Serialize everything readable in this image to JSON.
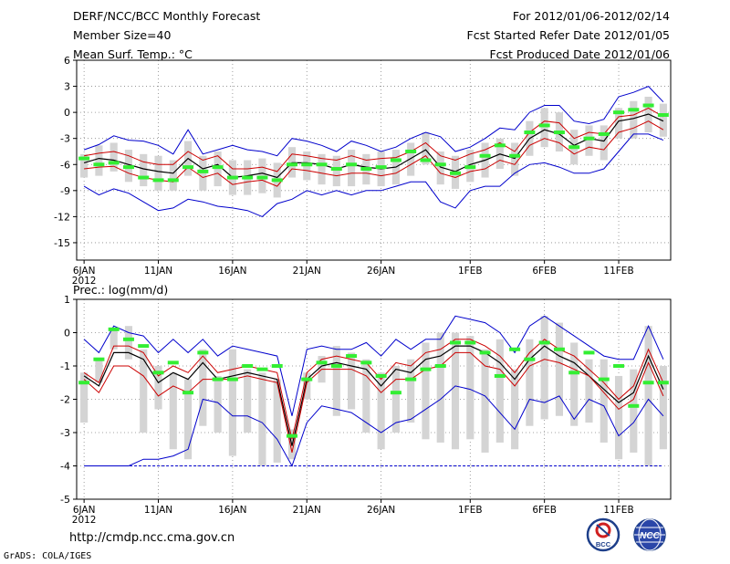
{
  "header": {
    "title": "DERF/NCC/BCC Monthly Forecast",
    "member_size": "Member Size=40",
    "variable": "Mean Surf. Temp.: °C",
    "period": "For 2012/01/06-2012/02/14",
    "refer_date": "Fcst Started Refer Date 2012/01/05",
    "produced_date": "Fcst Produced Date 2012/01/06"
  },
  "footer": {
    "url": "http://cmdp.ncc.cma.gov.cn",
    "credit": "GrADS: COLA/IGES",
    "logo_bcc": "BCC",
    "logo_ncc": "NCC"
  },
  "colors": {
    "ens_max_min": "#0000cc",
    "spread": "#cc0000",
    "ens_mean": "#000000",
    "box": "#d4d4d4",
    "observed": "#33ee33"
  },
  "chart_data": [
    {
      "type": "line",
      "title": "Mean Surf. Temp.: °C",
      "ylim": [
        -17,
        6
      ],
      "yticks": [
        6,
        3,
        0,
        -3,
        -6,
        -9,
        -12,
        -15
      ],
      "xlim": [
        0.5,
        40.5
      ],
      "xticks": [
        {
          "day": 1,
          "label": "6JAN",
          "sublabel": "2012"
        },
        {
          "day": 6,
          "label": "11JAN"
        },
        {
          "day": 11,
          "label": "16JAN"
        },
        {
          "day": 16,
          "label": "21JAN"
        },
        {
          "day": 21,
          "label": "26JAN"
        },
        {
          "day": 27,
          "label": "1FEB"
        },
        {
          "day": 32,
          "label": "6FEB"
        },
        {
          "day": 37,
          "label": "11FEB"
        }
      ],
      "x": [
        1,
        2,
        3,
        4,
        5,
        6,
        7,
        8,
        9,
        10,
        11,
        12,
        13,
        14,
        15,
        16,
        17,
        18,
        19,
        20,
        21,
        22,
        23,
        24,
        25,
        26,
        27,
        28,
        29,
        30,
        31,
        32,
        33,
        34,
        35,
        36,
        37,
        38,
        39,
        40
      ],
      "series": [
        {
          "name": "Ensemble Max",
          "role": "max",
          "values": [
            -4.3,
            -3.7,
            -2.7,
            -3.2,
            -3.3,
            -3.8,
            -4.8,
            -2.0,
            -4.8,
            -4.3,
            -3.8,
            -4.3,
            -4.5,
            -5.0,
            -3.0,
            -3.3,
            -3.8,
            -4.5,
            -3.3,
            -3.8,
            -4.5,
            -4.0,
            -3.0,
            -2.3,
            -2.8,
            -4.5,
            -4.0,
            -3.0,
            -1.8,
            -2.0,
            0.0,
            0.8,
            0.8,
            -1.0,
            -1.3,
            -0.8,
            1.8,
            2.3,
            3.0,
            1.2
          ]
        },
        {
          "name": "Upper Spread",
          "role": "upper",
          "values": [
            -5.0,
            -4.7,
            -4.5,
            -5.0,
            -5.7,
            -6.0,
            -6.0,
            -4.5,
            -5.5,
            -5.0,
            -6.5,
            -6.5,
            -6.3,
            -6.8,
            -4.8,
            -5.0,
            -5.3,
            -5.5,
            -5.0,
            -5.5,
            -5.3,
            -5.2,
            -4.5,
            -3.5,
            -5.0,
            -5.5,
            -4.8,
            -4.3,
            -3.5,
            -4.5,
            -2.3,
            -1.0,
            -1.2,
            -3.0,
            -2.3,
            -2.5,
            -0.5,
            -0.3,
            0.5,
            -0.5
          ]
        },
        {
          "name": "Ensemble Mean",
          "role": "mean",
          "values": [
            -5.8,
            -5.3,
            -5.5,
            -6.0,
            -6.5,
            -6.8,
            -7.0,
            -5.3,
            -6.5,
            -6.0,
            -7.5,
            -7.3,
            -7.0,
            -7.5,
            -5.8,
            -5.8,
            -6.0,
            -6.5,
            -6.0,
            -6.3,
            -6.5,
            -6.3,
            -5.3,
            -4.3,
            -6.3,
            -6.8,
            -6.0,
            -5.5,
            -4.8,
            -5.3,
            -3.0,
            -2.0,
            -2.5,
            -3.8,
            -3.0,
            -3.3,
            -1.0,
            -0.7,
            -0.2,
            -1.0
          ]
        },
        {
          "name": "Lower Spread",
          "role": "lower",
          "values": [
            -6.5,
            -6.3,
            -6.2,
            -7.0,
            -7.5,
            -7.8,
            -8.0,
            -6.3,
            -7.5,
            -7.0,
            -8.3,
            -8.0,
            -7.8,
            -8.5,
            -6.5,
            -6.7,
            -7.0,
            -7.3,
            -7.0,
            -7.0,
            -7.3,
            -7.0,
            -6.0,
            -5.0,
            -7.0,
            -7.5,
            -6.8,
            -6.5,
            -5.5,
            -6.0,
            -3.8,
            -3.0,
            -3.5,
            -4.8,
            -4.0,
            -4.3,
            -2.3,
            -1.8,
            -1.0,
            -2.0
          ]
        },
        {
          "name": "Ensemble Min",
          "role": "min",
          "values": [
            -8.5,
            -9.5,
            -8.8,
            -9.3,
            -10.3,
            -11.3,
            -11.0,
            -10.0,
            -10.3,
            -10.8,
            -11.0,
            -11.3,
            -12.0,
            -10.5,
            -10.0,
            -9.0,
            -9.5,
            -9.0,
            -9.5,
            -9.0,
            -9.0,
            -8.5,
            -8.0,
            -8.0,
            -10.3,
            -11.0,
            -9.0,
            -8.5,
            -8.5,
            -7.0,
            -6.0,
            -5.8,
            -6.3,
            -7.0,
            -7.0,
            -6.5,
            -4.5,
            -2.5,
            -2.5,
            -3.2
          ]
        }
      ],
      "boxes": {
        "low": [
          -7.5,
          -7.3,
          -6.8,
          -8.0,
          -8.5,
          -9.0,
          -9.0,
          -7.3,
          -9.0,
          -8.5,
          -9.5,
          -9.5,
          -9.3,
          -9.8,
          -7.5,
          -7.8,
          -8.3,
          -8.5,
          -8.5,
          -8.3,
          -8.5,
          -8.3,
          -7.3,
          -6.0,
          -8.3,
          -8.8,
          -8.0,
          -7.5,
          -6.5,
          -7.3,
          -5.0,
          -4.0,
          -4.5,
          -6.0,
          -5.0,
          -5.5,
          -3.0,
          -3.0,
          -2.3,
          -2.8
        ],
        "high": [
          -4.8,
          -3.8,
          -3.5,
          -4.3,
          -4.8,
          -5.0,
          -5.5,
          -3.3,
          -5.0,
          -4.5,
          -5.5,
          -5.5,
          -5.3,
          -5.8,
          -4.0,
          -4.5,
          -4.8,
          -5.0,
          -4.3,
          -4.8,
          -4.5,
          -4.3,
          -3.5,
          -2.3,
          -4.5,
          -5.0,
          -4.3,
          -3.5,
          -3.0,
          -3.5,
          -1.0,
          0.5,
          0.0,
          -2.0,
          -1.5,
          -1.5,
          0.5,
          1.3,
          1.8,
          1.0
        ]
      },
      "observed": [
        -5.3,
        -6.0,
        -5.8,
        -6.3,
        -7.5,
        -7.8,
        -7.8,
        -6.3,
        -6.8,
        -6.3,
        -7.5,
        -7.5,
        -7.5,
        -7.8,
        -6.0,
        -6.0,
        -6.0,
        -6.5,
        -6.0,
        -6.5,
        -6.3,
        -5.5,
        -4.5,
        -5.5,
        -6.0,
        -7.0,
        -6.3,
        -5.0,
        -3.8,
        -5.0,
        -2.3,
        -1.5,
        -2.3,
        -4.0,
        -3.0,
        -2.5,
        0.0,
        0.3,
        0.8,
        -0.3
      ]
    },
    {
      "type": "line",
      "title": "Prec.: log(mm/d)",
      "ylim": [
        -5,
        1
      ],
      "yticks": [
        1,
        0,
        -1,
        -2,
        -3,
        -4,
        -5
      ],
      "xlim": [
        0.5,
        40.5
      ],
      "xticks": [
        {
          "day": 1,
          "label": "6JAN",
          "sublabel": "2012"
        },
        {
          "day": 6,
          "label": "11JAN"
        },
        {
          "day": 11,
          "label": "16JAN"
        },
        {
          "day": 16,
          "label": "21JAN"
        },
        {
          "day": 21,
          "label": "26JAN"
        },
        {
          "day": 27,
          "label": "1FEB"
        },
        {
          "day": 32,
          "label": "6FEB"
        },
        {
          "day": 37,
          "label": "11FEB"
        }
      ],
      "x": [
        1,
        2,
        3,
        4,
        5,
        6,
        7,
        8,
        9,
        10,
        11,
        12,
        13,
        14,
        15,
        16,
        17,
        18,
        19,
        20,
        21,
        22,
        23,
        24,
        25,
        26,
        27,
        28,
        29,
        30,
        31,
        32,
        33,
        34,
        35,
        36,
        37,
        38,
        39,
        40
      ],
      "series": [
        {
          "name": "Ensemble Max",
          "role": "max",
          "values": [
            -0.2,
            -0.6,
            0.2,
            0.0,
            -0.1,
            -0.6,
            -0.2,
            -0.6,
            -0.2,
            -0.7,
            -0.4,
            -0.5,
            -0.6,
            -0.7,
            -2.5,
            -0.5,
            -0.4,
            -0.5,
            -0.5,
            -0.3,
            -0.7,
            -0.2,
            -0.5,
            -0.2,
            -0.2,
            0.5,
            0.4,
            0.3,
            0.0,
            -0.6,
            0.2,
            0.5,
            0.2,
            -0.1,
            -0.4,
            -0.7,
            -0.8,
            -0.8,
            0.2,
            -0.8
          ]
        },
        {
          "name": "Upper Spread",
          "role": "upper",
          "values": [
            -1.2,
            -1.5,
            -0.4,
            -0.4,
            -0.6,
            -1.3,
            -1.0,
            -1.2,
            -0.7,
            -1.2,
            -1.1,
            -1.0,
            -1.1,
            -1.2,
            -3.2,
            -1.2,
            -0.8,
            -0.7,
            -0.8,
            -0.9,
            -1.4,
            -0.9,
            -1.0,
            -0.6,
            -0.5,
            -0.2,
            -0.2,
            -0.4,
            -0.7,
            -1.2,
            -0.6,
            -0.2,
            -0.5,
            -0.7,
            -1.1,
            -1.5,
            -2.0,
            -1.6,
            -0.5,
            -1.5
          ]
        },
        {
          "name": "Ensemble Mean",
          "role": "mean",
          "values": [
            -1.3,
            -1.6,
            -0.6,
            -0.6,
            -0.8,
            -1.5,
            -1.2,
            -1.4,
            -0.9,
            -1.4,
            -1.3,
            -1.2,
            -1.3,
            -1.4,
            -3.4,
            -1.4,
            -1.0,
            -0.9,
            -1.0,
            -1.1,
            -1.6,
            -1.1,
            -1.2,
            -0.8,
            -0.7,
            -0.4,
            -0.4,
            -0.6,
            -0.9,
            -1.4,
            -0.8,
            -0.4,
            -0.7,
            -0.9,
            -1.3,
            -1.7,
            -2.1,
            -1.8,
            -0.7,
            -1.7
          ]
        },
        {
          "name": "Lower Spread",
          "role": "lower",
          "values": [
            -1.4,
            -1.8,
            -1.0,
            -1.0,
            -1.3,
            -1.9,
            -1.6,
            -1.8,
            -1.4,
            -1.4,
            -1.4,
            -1.3,
            -1.4,
            -1.5,
            -3.6,
            -1.5,
            -1.1,
            -1.1,
            -1.1,
            -1.3,
            -1.8,
            -1.4,
            -1.4,
            -1.1,
            -1.0,
            -0.6,
            -0.6,
            -1.0,
            -1.1,
            -1.6,
            -1.0,
            -0.8,
            -0.9,
            -1.1,
            -1.3,
            -1.8,
            -2.3,
            -2.0,
            -0.9,
            -1.9
          ]
        },
        {
          "name": "Ensemble Min",
          "role": "min",
          "values": [
            -4.0,
            -4.0,
            -4.0,
            -4.0,
            -3.8,
            -3.8,
            -3.7,
            -3.5,
            -2.0,
            -2.1,
            -2.5,
            -2.5,
            -2.7,
            -3.2,
            -4.0,
            -2.7,
            -2.2,
            -2.3,
            -2.4,
            -2.7,
            -3.0,
            -2.7,
            -2.6,
            -2.3,
            -2.0,
            -1.6,
            -1.7,
            -1.9,
            -2.4,
            -2.9,
            -2.0,
            -2.1,
            -1.9,
            -2.6,
            -2.0,
            -2.2,
            -3.1,
            -2.7,
            -2.0,
            -2.5
          ]
        },
        {
          "name": "Dry Floor",
          "role": "floor",
          "values": [
            -4.0,
            -4.0,
            -4.0,
            -4.0,
            -4.0,
            -4.0,
            -4.0,
            -4.0,
            -4.0,
            -4.0,
            -4.0,
            -4.0,
            -4.0,
            -4.0,
            -4.0,
            -4.0,
            -4.0,
            -4.0,
            -4.0,
            -4.0,
            -4.0,
            -4.0,
            -4.0,
            -4.0,
            -4.0,
            -4.0,
            -4.0,
            -4.0,
            -4.0,
            -4.0,
            -4.0,
            -4.0,
            -4.0,
            -4.0,
            -4.0,
            -4.0,
            -4.0,
            -4.0,
            -4.0,
            -4.0
          ]
        }
      ],
      "boxes": {
        "low": [
          -2.7,
          -1.5,
          -0.5,
          -0.8,
          -3.0,
          -2.3,
          -3.5,
          -3.8,
          -2.8,
          -3.0,
          -3.7,
          -3.0,
          -4.0,
          -3.9,
          -3.8,
          -2.0,
          -1.5,
          -2.5,
          -2.3,
          -3.0,
          -3.5,
          -3.0,
          -2.7,
          -3.2,
          -3.3,
          -3.5,
          -3.2,
          -3.6,
          -3.3,
          -3.5,
          -2.8,
          -2.6,
          -2.5,
          -2.8,
          -2.7,
          -3.3,
          -3.8,
          -3.6,
          -4.0,
          -3.5
        ],
        "high": [
          -1.2,
          -0.8,
          0.1,
          0.2,
          -0.5,
          -1.0,
          -1.2,
          -1.4,
          -0.5,
          -1.3,
          -0.5,
          -1.1,
          -1.2,
          -1.4,
          -2.9,
          -1.2,
          -0.7,
          -0.4,
          -0.6,
          -0.8,
          -1.2,
          -1.0,
          -0.8,
          -0.3,
          0.0,
          0.0,
          -0.1,
          -0.5,
          -0.2,
          -1.1,
          -0.2,
          0.5,
          0.3,
          -0.3,
          -0.8,
          -0.8,
          -1.3,
          -1.1,
          0.2,
          -1.0
        ]
      },
      "observed": [
        -1.5,
        -0.8,
        0.1,
        -0.2,
        -0.4,
        -1.2,
        -0.9,
        -1.8,
        -0.6,
        -1.4,
        -1.4,
        -1.0,
        -1.1,
        -1.0,
        -3.1,
        -1.4,
        -0.9,
        -1.0,
        -0.7,
        -0.9,
        -1.3,
        -1.8,
        -1.4,
        -1.1,
        -1.0,
        -0.3,
        -0.3,
        -0.6,
        -1.3,
        -0.5,
        -0.8,
        -0.3,
        -0.5,
        -1.2,
        -0.6,
        -1.4,
        -1.0,
        -2.2,
        -1.5,
        -1.5
      ]
    }
  ]
}
